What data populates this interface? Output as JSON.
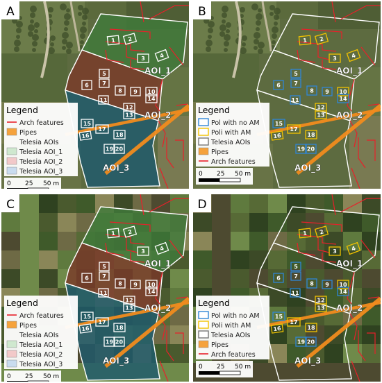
{
  "panels": [
    {
      "letter": "A",
      "legend": {
        "title": "Legend",
        "items": [
          {
            "label": "Arch features",
            "kind": "line",
            "color": "#e8202a"
          },
          {
            "label": "Pipes",
            "kind": "fill",
            "color": "#f5a23c"
          },
          {
            "label": "Telesia AOIs",
            "kind": "heading"
          },
          {
            "label": "Telesia AOI_1",
            "kind": "fill",
            "color": "#cfe8cf"
          },
          {
            "label": "Telesia AOI_2",
            "kind": "fill",
            "color": "#f2c9c9"
          },
          {
            "label": "Telesia AOI_3",
            "kind": "fill",
            "color": "#c9dcef"
          }
        ]
      },
      "scale": {
        "labels": [
          "0",
          "25",
          "50 m"
        ]
      },
      "aoi_labels": [
        "AOI_1",
        "AOI_2",
        "AOI_3"
      ],
      "polygon_labels": [
        "1",
        "2",
        "3",
        "4",
        "5",
        "6",
        "7",
        "8",
        "9",
        "10",
        "11",
        "12",
        "13",
        "14",
        "15",
        "16",
        "17",
        "18",
        "19",
        "20"
      ]
    },
    {
      "letter": "B",
      "legend": {
        "title": "Legend",
        "items": [
          {
            "label": "Pol with no AM",
            "kind": "outline",
            "color": "#2f86d6"
          },
          {
            "label": "Poli with AM",
            "kind": "outline",
            "color": "#f2c300"
          },
          {
            "label": "Telesia AOIs",
            "kind": "outline",
            "color": "#777777"
          },
          {
            "label": "Pipes",
            "kind": "fill",
            "color": "#f5a23c"
          },
          {
            "label": "Arch features",
            "kind": "line",
            "color": "#e8202a"
          }
        ]
      },
      "scale": {
        "labels": [
          "0",
          "25",
          "50 m"
        ]
      },
      "aoi_labels": [
        "AOI_1",
        "AOI_2",
        "AOI_3"
      ],
      "polygon_labels": [
        "1",
        "2",
        "3",
        "4",
        "5",
        "6",
        "7",
        "8",
        "9",
        "10",
        "11",
        "12",
        "13",
        "14",
        "15",
        "16",
        "17",
        "18",
        "19",
        "20"
      ]
    },
    {
      "letter": "C",
      "legend": {
        "title": "Legend",
        "items": [
          {
            "label": "Arch features",
            "kind": "line",
            "color": "#e8202a"
          },
          {
            "label": "Pipes",
            "kind": "fill",
            "color": "#f5a23c"
          },
          {
            "label": "Telesia AOIs",
            "kind": "heading"
          },
          {
            "label": "Telesia AOI_1",
            "kind": "fill",
            "color": "#cfe8cf"
          },
          {
            "label": "Telesia AOI_2",
            "kind": "fill",
            "color": "#f2c9c9"
          },
          {
            "label": "Telesia AOI_3",
            "kind": "fill",
            "color": "#c9dcef"
          }
        ]
      },
      "scale": {
        "labels": [
          "0",
          "25",
          "50 m"
        ]
      },
      "aoi_labels": [
        "AOI_1",
        "AOI_2",
        "AOI_3"
      ],
      "polygon_labels": [
        "1",
        "2",
        "3",
        "4",
        "5",
        "6",
        "7",
        "8",
        "9",
        "10",
        "11",
        "12",
        "13",
        "14",
        "15",
        "16",
        "17",
        "18",
        "19",
        "20"
      ]
    },
    {
      "letter": "D",
      "legend": {
        "title": "Legend",
        "items": [
          {
            "label": "Pol with no AM",
            "kind": "outline",
            "color": "#2f86d6"
          },
          {
            "label": "Poli with AM",
            "kind": "outline",
            "color": "#f2c300"
          },
          {
            "label": "Telesia AOIs",
            "kind": "outline",
            "color": "#777777"
          },
          {
            "label": "Pipes",
            "kind": "fill",
            "color": "#f5a23c"
          },
          {
            "label": "Arch features",
            "kind": "line",
            "color": "#e8202a"
          }
        ]
      },
      "scale": {
        "labels": [
          "0",
          "25",
          "50 m"
        ]
      },
      "aoi_labels": [
        "AOI_1",
        "AOI_2",
        "AOI_3"
      ],
      "polygon_labels": [
        "1",
        "2",
        "3",
        "4",
        "5",
        "6",
        "7",
        "8",
        "9",
        "10",
        "11",
        "12",
        "13",
        "14",
        "15",
        "16",
        "17",
        "18",
        "19",
        "20"
      ]
    }
  ],
  "am_polygons": [
    "1",
    "2",
    "3",
    "4",
    "10",
    "12",
    "13",
    "16",
    "17",
    "18"
  ],
  "colors": {
    "aoi1_tint": "#3f7a3a",
    "aoi2_tint": "#7a3b2a",
    "aoi3_tint": "#1f5a6e",
    "pipe": "#f28c1e",
    "arch": "#e8202a",
    "no_am": "#2f86d6",
    "with_am": "#f2c300",
    "outline": "#ffffff"
  }
}
